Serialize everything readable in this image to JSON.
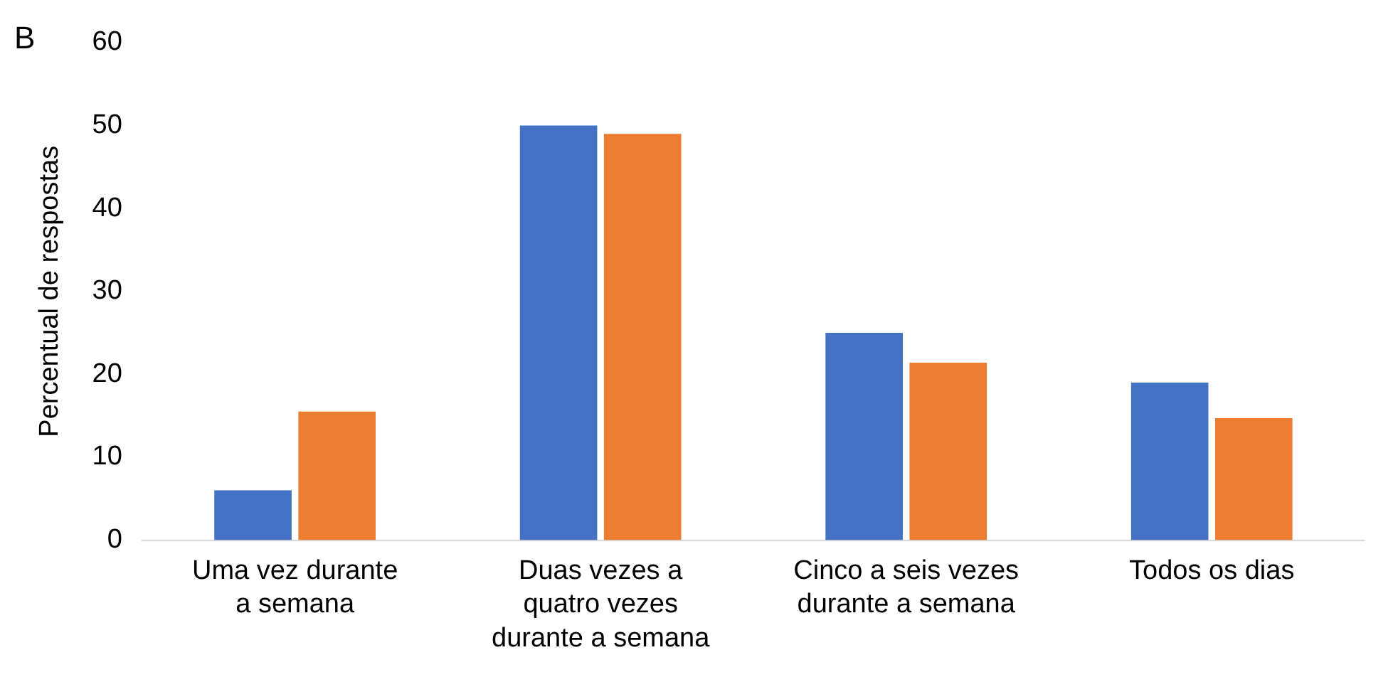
{
  "chart_data": {
    "type": "bar",
    "ylabel": "Percentual de respostas",
    "annotations": [
      "B"
    ],
    "categories": [
      "Uma vez durante a semana",
      "Duas vezes a quatro vezes durante a semana",
      "Cinco a seis vezes durante a semana",
      "Todos os dias"
    ],
    "series": [
      {
        "color": "#4472c4",
        "values": [
          6,
          50,
          25,
          19
        ]
      },
      {
        "color": "#ed7d31",
        "values": [
          15.5,
          49,
          21.4,
          14.7
        ]
      }
    ],
    "ylim": [
      0,
      60
    ],
    "yticks": [
      0,
      10,
      20,
      30,
      40,
      50,
      60
    ],
    "grid": false,
    "legend": false
  }
}
